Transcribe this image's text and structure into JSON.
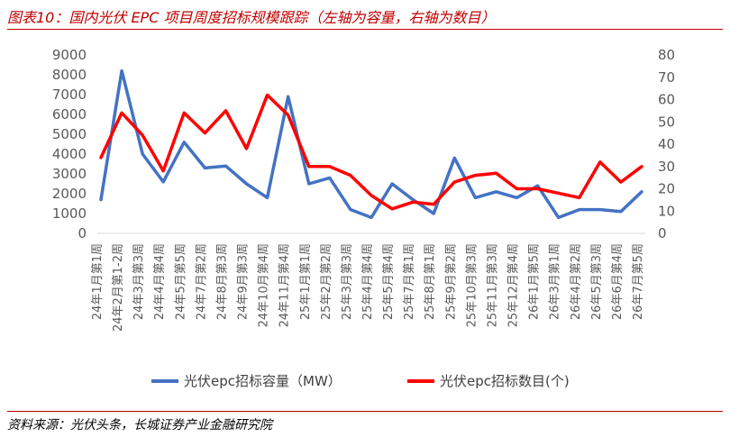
{
  "header": {
    "title": "图表10：国内光伏 EPC 项目周度招标规模跟踪（左轴为容量，右轴为数目）"
  },
  "footer": {
    "source": "资料来源：光伏头条，长城证券产业金融研究院"
  },
  "colors": {
    "accent": "#c00000",
    "capacity": "#4472c4",
    "count": "#ff0000"
  },
  "chart_data": {
    "type": "line",
    "title": "",
    "x": [
      "24年1月第1周",
      "24年2月第1-2周",
      "24年3月第3周",
      "24年4月第4周",
      "24年5月第5周",
      "24年7月第2周",
      "24年8月第3周",
      "24年9月第3周",
      "24年10月第4周",
      "24年11月第4周",
      "25年1月第1周",
      "25年2月第2周",
      "25年3月第3周",
      "25年4月第4周",
      "25年5月第4周",
      "25年7月第1周",
      "25年8月第1周",
      "25年9月第2周",
      "25年10月第3周",
      "25年11月第3周",
      "25年12月第4周",
      "26年1月第5周",
      "26年3月第1周",
      "26年4月第2周",
      "26年5月第3周",
      "26年6月第4周",
      "26年7月第5周"
    ],
    "series": [
      {
        "name": "光伏epc招标容量（MW）",
        "axis": "left",
        "values": [
          1700,
          8200,
          4000,
          2600,
          4600,
          3300,
          3400,
          2500,
          1800,
          6900,
          2500,
          2800,
          1200,
          800,
          2500,
          1700,
          1000,
          3800,
          1800,
          2100,
          1800,
          2400,
          800,
          1200,
          1200,
          1100,
          2100
        ]
      },
      {
        "name": "光伏epc招标数目(个)",
        "axis": "right",
        "values": [
          34,
          54,
          44,
          28,
          54,
          45,
          55,
          38,
          62,
          53,
          30,
          30,
          26,
          17,
          11,
          14,
          13,
          23,
          26,
          27,
          20,
          20,
          18,
          16,
          32,
          23,
          30
        ]
      }
    ],
    "ylim_left": [
      0,
      9000
    ],
    "ylim_right": [
      0,
      80
    ],
    "yticks_left": [
      "9000",
      "8000",
      "7000",
      "6000",
      "5000",
      "4000",
      "3000",
      "2000",
      "1000",
      "0"
    ],
    "yticks_right": [
      "80",
      "70",
      "60",
      "50",
      "40",
      "30",
      "20",
      "10",
      "0"
    ],
    "grid": false,
    "legend": "bottom"
  }
}
